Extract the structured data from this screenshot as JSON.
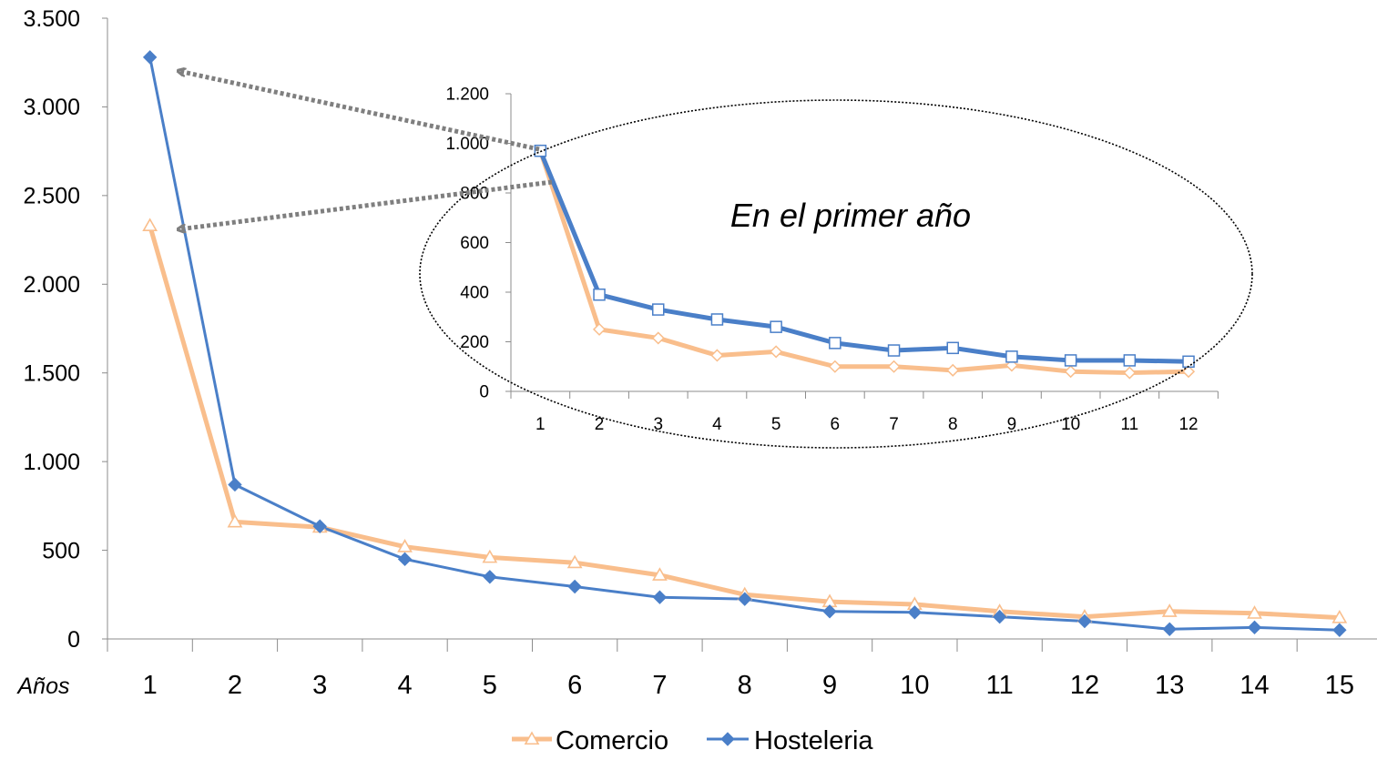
{
  "colors": {
    "comercio": "#F9BE8C",
    "hosteleria": "#4A7FC8",
    "axis": "#8C8C8C",
    "arrow": "#7F7F7F"
  },
  "chart_data": [
    {
      "id": "main",
      "type": "line",
      "title": "",
      "xlabel": "Años",
      "ylabel": "",
      "categories": [
        "1",
        "2",
        "3",
        "4",
        "5",
        "6",
        "7",
        "8",
        "9",
        "10",
        "11",
        "12",
        "13",
        "14",
        "15"
      ],
      "ylim": [
        0,
        3500
      ],
      "ytick_values": [
        0,
        500,
        1000,
        1500,
        2000,
        2500,
        3000,
        3500
      ],
      "ytick_labels": [
        "0",
        "500",
        "1.000",
        "1.500",
        "2.000",
        "2.500",
        "3.000",
        "3.500"
      ],
      "grid": false,
      "legend": "bottom",
      "series": [
        {
          "name": "Comercio",
          "marker": "triangle-open",
          "values": [
            2330,
            660,
            630,
            520,
            460,
            430,
            360,
            250,
            210,
            195,
            155,
            125,
            155,
            145,
            120
          ]
        },
        {
          "name": "Hosteleria",
          "marker": "diamond-filled",
          "values": [
            3280,
            870,
            635,
            450,
            350,
            295,
            235,
            225,
            155,
            150,
            125,
            100,
            55,
            65,
            50
          ]
        }
      ]
    },
    {
      "id": "inset",
      "type": "line",
      "title": "",
      "xlabel": "",
      "categories": [
        "1",
        "2",
        "3",
        "4",
        "5",
        "6",
        "7",
        "8",
        "9",
        "10",
        "11",
        "12"
      ],
      "ylim": [
        0,
        1200
      ],
      "ytick_values": [
        0,
        200,
        400,
        600,
        800,
        1000,
        1200
      ],
      "ytick_labels": [
        "0",
        "200",
        "400",
        "600",
        "800",
        "1.000",
        "1.200"
      ],
      "grid": false,
      "series": [
        {
          "name": "Comercio",
          "marker": "diamond-open",
          "values": [
            970,
            250,
            215,
            145,
            160,
            100,
            100,
            85,
            105,
            80,
            75,
            80
          ]
        },
        {
          "name": "Hosteleria",
          "marker": "square-open",
          "values": [
            970,
            390,
            330,
            290,
            260,
            195,
            165,
            175,
            140,
            125,
            125,
            120
          ]
        }
      ]
    }
  ],
  "annotation": {
    "text": "En el primer año"
  }
}
